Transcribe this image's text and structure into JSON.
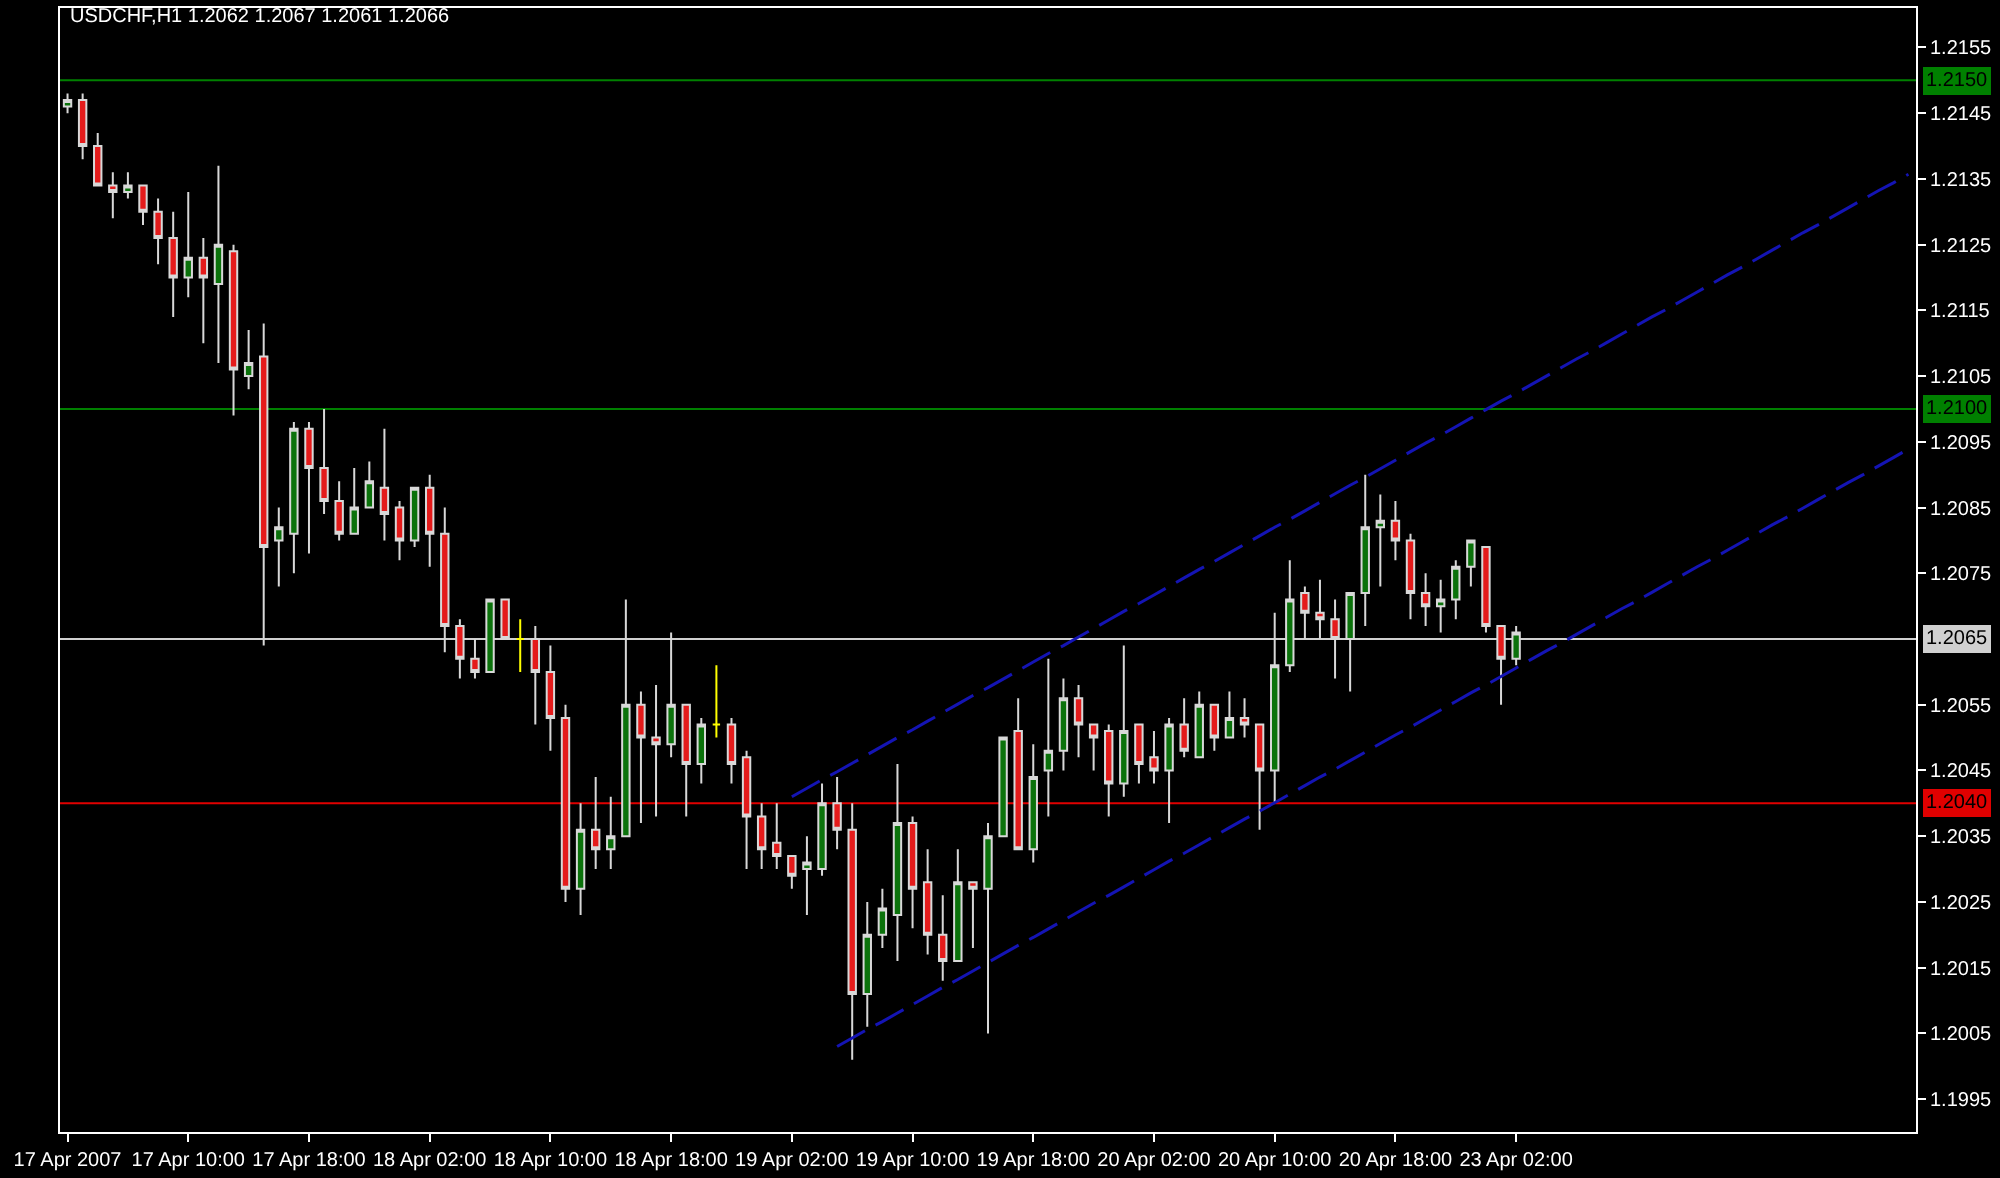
{
  "chart_data": {
    "type": "candlestick",
    "title": "USDCHF,H1 1.2062 1.2067 1.2061 1.2066",
    "categories": [
      "17 Apr 2007",
      null,
      null,
      null,
      null,
      null,
      null,
      null,
      "17 Apr 10:00",
      null,
      null,
      null,
      null,
      null,
      null,
      null,
      "17 Apr 18:00",
      null,
      null,
      null,
      null,
      null,
      null,
      null,
      "18 Apr 02:00",
      null,
      null,
      null,
      null,
      null,
      null,
      null,
      "18 Apr 10:00",
      null,
      null,
      null,
      null,
      null,
      null,
      null,
      "18 Apr 18:00",
      null,
      null,
      null,
      null,
      null,
      null,
      null,
      "19 Apr 02:00",
      null,
      null,
      null,
      null,
      null,
      null,
      null,
      "19 Apr 10:00",
      null,
      null,
      null,
      null,
      null,
      null,
      null,
      "19 Apr 18:00",
      null,
      null,
      null,
      null,
      null,
      null,
      null,
      "20 Apr 02:00",
      null,
      null,
      null,
      null,
      null,
      null,
      null,
      "20 Apr 10:00",
      null,
      null,
      null,
      null,
      null,
      null,
      null,
      "20 Apr 18:00",
      null,
      null,
      null,
      null,
      null,
      null,
      null,
      "23 Apr 02:00",
      null,
      null,
      null,
      null,
      null,
      null,
      null,
      null,
      null,
      null,
      null,
      null,
      null,
      null,
      null,
      null,
      null,
      null,
      null,
      null,
      null,
      null,
      null,
      null,
      null,
      null
    ],
    "ohlc": [
      [
        1.2146,
        1.2148,
        1.2145,
        1.2147
      ],
      [
        1.2147,
        1.2148,
        1.2138,
        1.214
      ],
      [
        1.214,
        1.2142,
        1.2134,
        1.2134
      ],
      [
        1.2134,
        1.2136,
        1.2129,
        1.2133
      ],
      [
        1.2133,
        1.2136,
        1.2132,
        1.2134
      ],
      [
        1.2134,
        1.2134,
        1.2128,
        1.213
      ],
      [
        1.213,
        1.2132,
        1.2122,
        1.2126
      ],
      [
        1.2126,
        1.213,
        1.2114,
        1.212
      ],
      [
        1.212,
        1.2133,
        1.2117,
        1.2123
      ],
      [
        1.2123,
        1.2126,
        1.211,
        1.212
      ],
      [
        1.2119,
        1.2137,
        1.2107,
        1.2125
      ],
      [
        1.2124,
        1.2125,
        1.2099,
        1.2106
      ],
      [
        1.2105,
        1.2112,
        1.2103,
        1.2107
      ],
      [
        1.2108,
        1.2113,
        1.2064,
        1.2079
      ],
      [
        1.208,
        1.2085,
        1.2073,
        1.2082
      ],
      [
        1.2081,
        1.2098,
        1.2075,
        1.2097
      ],
      [
        1.2097,
        1.2098,
        1.2078,
        1.2091
      ],
      [
        1.2091,
        1.21,
        1.2084,
        1.2086
      ],
      [
        1.2086,
        1.2089,
        1.208,
        1.2081
      ],
      [
        1.2081,
        1.2091,
        1.2081,
        1.2085
      ],
      [
        1.2085,
        1.2092,
        1.2085,
        1.2089
      ],
      [
        1.2088,
        1.2097,
        1.208,
        1.2084
      ],
      [
        1.2085,
        1.2086,
        1.2077,
        1.208
      ],
      [
        1.208,
        1.2088,
        1.2079,
        1.2088
      ],
      [
        1.2088,
        1.209,
        1.2076,
        1.2081
      ],
      [
        1.2081,
        1.2085,
        1.2063,
        1.2067
      ],
      [
        1.2067,
        1.2068,
        1.2059,
        1.2062
      ],
      [
        1.2062,
        1.2065,
        1.2059,
        1.206
      ],
      [
        1.206,
        1.2071,
        1.206,
        1.2071
      ],
      [
        1.2071,
        1.2071,
        1.2065,
        1.2065
      ],
      [
        1.2065,
        1.2068,
        1.206,
        1.2065
      ],
      [
        1.2065,
        1.2067,
        1.2052,
        1.206
      ],
      [
        1.206,
        1.2064,
        1.2048,
        1.2053
      ],
      [
        1.2053,
        1.2055,
        1.2025,
        1.2027
      ],
      [
        1.2027,
        1.204,
        1.2023,
        1.2036
      ],
      [
        1.2036,
        1.2044,
        1.203,
        1.2033
      ],
      [
        1.2033,
        1.2041,
        1.203,
        1.2035
      ],
      [
        1.2035,
        1.2071,
        1.2035,
        1.2055
      ],
      [
        1.2055,
        1.2057,
        1.2037,
        1.205
      ],
      [
        1.205,
        1.2058,
        1.2038,
        1.2049
      ],
      [
        1.2049,
        1.2066,
        1.2047,
        1.2055
      ],
      [
        1.2055,
        1.2055,
        1.2038,
        1.2046
      ],
      [
        1.2046,
        1.2053,
        1.2043,
        1.2052
      ],
      [
        1.2052,
        1.2061,
        1.205,
        1.2052
      ],
      [
        1.2052,
        1.2053,
        1.2043,
        1.2046
      ],
      [
        1.2047,
        1.2048,
        1.203,
        1.2038
      ],
      [
        1.2038,
        1.204,
        1.203,
        1.2033
      ],
      [
        1.2034,
        1.204,
        1.203,
        1.2032
      ],
      [
        1.2032,
        1.2032,
        1.2027,
        1.2029
      ],
      [
        1.203,
        1.2035,
        1.2023,
        1.2031
      ],
      [
        1.203,
        1.2043,
        1.2029,
        1.204
      ],
      [
        1.204,
        1.2044,
        1.2033,
        1.2036
      ],
      [
        1.2036,
        1.204,
        1.2001,
        1.2011
      ],
      [
        1.2011,
        1.2025,
        1.2006,
        1.202
      ],
      [
        1.202,
        1.2027,
        1.2018,
        1.2024
      ],
      [
        1.2023,
        1.2046,
        1.2016,
        1.2037
      ],
      [
        1.2037,
        1.2038,
        1.2021,
        1.2027
      ],
      [
        1.2028,
        1.2033,
        1.2017,
        1.202
      ],
      [
        1.202,
        1.2026,
        1.2013,
        1.2016
      ],
      [
        1.2016,
        1.2033,
        1.2016,
        1.2028
      ],
      [
        1.2028,
        1.2028,
        1.2018,
        1.2027
      ],
      [
        1.2027,
        1.2037,
        1.2005,
        1.2035
      ],
      [
        1.2035,
        1.205,
        1.2035,
        1.205
      ],
      [
        1.2051,
        1.2056,
        1.2033,
        1.2033
      ],
      [
        1.2033,
        1.2049,
        1.2031,
        1.2044
      ],
      [
        1.2045,
        1.2062,
        1.2038,
        1.2048
      ],
      [
        1.2048,
        1.2059,
        1.2045,
        1.2056
      ],
      [
        1.2056,
        1.2058,
        1.2047,
        1.2052
      ],
      [
        1.2052,
        1.2052,
        1.2045,
        1.205
      ],
      [
        1.2051,
        1.2052,
        1.2038,
        1.2043
      ],
      [
        1.2043,
        1.2064,
        1.2041,
        1.2051
      ],
      [
        1.2052,
        1.2052,
        1.2043,
        1.2046
      ],
      [
        1.2047,
        1.2051,
        1.2043,
        1.2045
      ],
      [
        1.2045,
        1.2053,
        1.2037,
        1.2052
      ],
      [
        1.2052,
        1.2056,
        1.2047,
        1.2048
      ],
      [
        1.2047,
        1.2057,
        1.2047,
        1.2055
      ],
      [
        1.2055,
        1.2055,
        1.2048,
        1.205
      ],
      [
        1.205,
        1.2057,
        1.205,
        1.2053
      ],
      [
        1.2053,
        1.2056,
        1.205,
        1.2052
      ],
      [
        1.2052,
        1.2052,
        1.2036,
        1.2045
      ],
      [
        1.2045,
        1.2069,
        1.204,
        1.2061
      ],
      [
        1.2061,
        1.2077,
        1.206,
        1.2071
      ],
      [
        1.2072,
        1.2073,
        1.2065,
        1.2069
      ],
      [
        1.2069,
        1.2074,
        1.2065,
        1.2068
      ],
      [
        1.2068,
        1.2071,
        1.2059,
        1.2065
      ],
      [
        1.2065,
        1.2072,
        1.2057,
        1.2072
      ],
      [
        1.2072,
        1.209,
        1.2067,
        1.2082
      ],
      [
        1.2082,
        1.2087,
        1.2073,
        1.2083
      ],
      [
        1.2083,
        1.2086,
        1.2077,
        1.208
      ],
      [
        1.208,
        1.2081,
        1.2068,
        1.2072
      ],
      [
        1.2072,
        1.2075,
        1.2067,
        1.207
      ],
      [
        1.207,
        1.2074,
        1.2066,
        1.2071
      ],
      [
        1.2071,
        1.2077,
        1.2068,
        1.2076
      ],
      [
        1.2076,
        1.208,
        1.2073,
        1.208
      ],
      [
        1.2079,
        1.2079,
        1.2066,
        1.2067
      ],
      [
        1.2067,
        1.2067,
        1.2055,
        1.2062
      ],
      [
        1.2062,
        1.2067,
        1.2061,
        1.2066
      ],
      null,
      null,
      null,
      null,
      null,
      null,
      null,
      null,
      null,
      null,
      null,
      null,
      null,
      null,
      null,
      null,
      null,
      null,
      null,
      null,
      null,
      null,
      null,
      null,
      null,
      null
    ],
    "colors": [
      "#0b720b",
      "#e41b1b",
      "#e41b1b",
      "#e41b1b",
      "#0b720b",
      "#e41b1b",
      "#e41b1b",
      "#e41b1b",
      "#0b720b",
      "#e41b1b",
      "#0b720b",
      "#e41b1b",
      "#0b720b",
      "#e41b1b",
      "#0b720b",
      "#0b720b",
      "#e41b1b",
      "#e41b1b",
      "#e41b1b",
      "#0b720b",
      "#0b720b",
      "#e41b1b",
      "#e41b1b",
      "#0b720b",
      "#e41b1b",
      "#e41b1b",
      "#e41b1b",
      "#e41b1b",
      "#0b720b",
      "#e41b1b",
      "#ffff00",
      "#e41b1b",
      "#e41b1b",
      "#e41b1b",
      "#0b720b",
      "#e41b1b",
      "#0b720b",
      "#0b720b",
      "#e41b1b",
      "#e41b1b",
      "#0b720b",
      "#e41b1b",
      "#0b720b",
      "#ffff00",
      "#e41b1b",
      "#e41b1b",
      "#e41b1b",
      "#e41b1b",
      "#e41b1b",
      "#0b720b",
      "#0b720b",
      "#e41b1b",
      "#e41b1b",
      "#0b720b",
      "#0b720b",
      "#0b720b",
      "#e41b1b",
      "#e41b1b",
      "#e41b1b",
      "#0b720b",
      "#e41b1b",
      "#0b720b",
      "#0b720b",
      "#e41b1b",
      "#0b720b",
      "#0b720b",
      "#0b720b",
      "#e41b1b",
      "#e41b1b",
      "#e41b1b",
      "#0b720b",
      "#e41b1b",
      "#e41b1b",
      "#0b720b",
      "#e41b1b",
      "#0b720b",
      "#e41b1b",
      "#0b720b",
      "#e41b1b",
      "#e41b1b",
      "#0b720b",
      "#0b720b",
      "#e41b1b",
      "#e41b1b",
      "#e41b1b",
      "#0b720b",
      "#0b720b",
      "#0b720b",
      "#e41b1b",
      "#e41b1b",
      "#e41b1b",
      "#0b720b",
      "#0b720b",
      "#0b720b",
      "#e41b1b",
      "#e41b1b",
      "#0b720b",
      null,
      null,
      null,
      null,
      null,
      null,
      null,
      null,
      null,
      null,
      null,
      null,
      null,
      null,
      null,
      null,
      null,
      null,
      null,
      null,
      null,
      null,
      null,
      null,
      null,
      null
    ],
    "series": [
      {
        "type": "line",
        "color": "#1414b4",
        "line_style": "dashed",
        "values": [
          null,
          null,
          null,
          null,
          null,
          null,
          null,
          null,
          null,
          null,
          null,
          null,
          null,
          null,
          null,
          null,
          null,
          null,
          null,
          null,
          null,
          null,
          null,
          null,
          null,
          null,
          null,
          null,
          null,
          null,
          null,
          null,
          null,
          null,
          null,
          null,
          null,
          null,
          null,
          null,
          null,
          null,
          null,
          null,
          null,
          null,
          null,
          null,
          1.2041,
          1.20423,
          1.20436,
          1.20448,
          1.20461,
          1.20474,
          1.20487,
          1.205,
          1.20512,
          1.20525,
          1.20538,
          1.20551,
          1.20564,
          1.20576,
          1.20589,
          1.20602,
          1.20615,
          1.20628,
          1.2064,
          1.20653,
          1.20666,
          1.20679,
          1.20692,
          1.20704,
          1.20717,
          1.2073,
          1.20743,
          1.20756,
          1.20768,
          1.20781,
          1.20794,
          1.20807,
          1.2082,
          1.20832,
          1.20845,
          1.20858,
          1.20871,
          1.20884,
          1.20896,
          1.20909,
          1.20922,
          1.20935,
          1.20948,
          1.2096,
          1.20973,
          1.20986,
          1.20999,
          1.21012,
          1.21024,
          1.21037,
          1.2105,
          1.21063,
          1.21076,
          1.21088,
          1.21101,
          1.21114,
          1.21127,
          1.2114,
          1.21152,
          1.21165,
          1.21178,
          1.21191,
          1.21204,
          1.21216,
          1.21229,
          1.21242,
          1.21255,
          1.21268,
          1.2128,
          1.21293,
          1.21306,
          1.21319,
          1.21332,
          1.21344,
          1.21357
        ]
      },
      {
        "type": "line",
        "color": "#1414b4",
        "line_style": "dashed",
        "values": [
          null,
          null,
          null,
          null,
          null,
          null,
          null,
          null,
          null,
          null,
          null,
          null,
          null,
          null,
          null,
          null,
          null,
          null,
          null,
          null,
          null,
          null,
          null,
          null,
          null,
          null,
          null,
          null,
          null,
          null,
          null,
          null,
          null,
          null,
          null,
          null,
          null,
          null,
          null,
          null,
          null,
          null,
          null,
          null,
          null,
          null,
          null,
          null,
          null,
          null,
          null,
          1.2003,
          1.20043,
          1.20056,
          1.20068,
          1.20081,
          1.20094,
          1.20107,
          1.2012,
          1.20132,
          1.20145,
          1.20158,
          1.20171,
          1.20184,
          1.20196,
          1.20209,
          1.20222,
          1.20235,
          1.20248,
          1.2026,
          1.20273,
          1.20286,
          1.20299,
          1.20312,
          1.20324,
          1.20337,
          1.2035,
          1.20363,
          1.20376,
          1.20388,
          1.20401,
          1.20414,
          1.20427,
          1.2044,
          1.20452,
          1.20465,
          1.20478,
          1.20491,
          1.20504,
          1.20516,
          1.20529,
          1.20542,
          1.20555,
          1.20568,
          1.2058,
          1.20593,
          1.20606,
          1.20619,
          1.20632,
          1.20644,
          1.20657,
          1.2067,
          1.20683,
          1.20696,
          1.20708,
          1.20721,
          1.20734,
          1.20747,
          1.2076,
          1.20772,
          1.20785,
          1.20798,
          1.20811,
          1.20824,
          1.20836,
          1.20849,
          1.20862,
          1.20875,
          1.20888,
          1.209,
          1.20913,
          1.20926,
          1.20939
        ]
      }
    ],
    "ylim": [
      1.199,
      1.2161
    ],
    "yticks": [
      1.1995,
      1.2005,
      1.2015,
      1.2025,
      1.2035,
      1.2045,
      1.2055,
      1.2075,
      1.2085,
      1.2095,
      1.2105,
      1.2115,
      1.2125,
      1.2135,
      1.2145,
      1.2155
    ],
    "ref_lines": [
      {
        "axis": "y",
        "value": 1.215,
        "label": "1.2150",
        "color": "#008000"
      },
      {
        "axis": "y",
        "value": 1.21,
        "label": "1.2100",
        "color": "#008000"
      },
      {
        "axis": "y",
        "value": 1.2065,
        "label": "1.2065",
        "color": "#d0d0d0"
      },
      {
        "axis": "y",
        "value": 1.204,
        "label": "1.2040",
        "color": "#e00000"
      }
    ]
  }
}
